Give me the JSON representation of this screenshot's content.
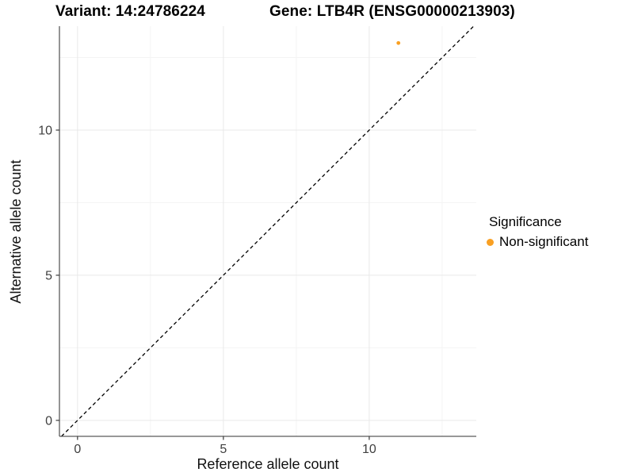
{
  "titles": {
    "variant": "Variant: 14:24786224",
    "gene": "Gene: LTB4R (ENSG00000213903)"
  },
  "axes": {
    "x_label": "Reference allele count",
    "y_label": "Alternative allele count"
  },
  "legend": {
    "title": "Significance",
    "items": [
      {
        "label": "Non-significant",
        "color": "#F9A023"
      }
    ]
  },
  "colors": {
    "background": "#ffffff",
    "point": "#F9A023",
    "axis_line": "#5a5a5a",
    "tick_text": "#404040",
    "major_grid": "#e9e9e9",
    "minor_grid": "#f4f4f4",
    "identity_line": "#000000"
  },
  "chart_data": {
    "type": "scatter",
    "title": "Variant: 14:24786224    Gene: LTB4R (ENSG00000213903)",
    "xlabel": "Reference allele count",
    "ylabel": "Alternative allele count",
    "xlim": [
      -0.62,
      13.67
    ],
    "ylim": [
      -0.55,
      13.58
    ],
    "x_ticks": [
      0,
      5,
      10
    ],
    "y_ticks": [
      0,
      5,
      10
    ],
    "x_minor_ticks": [
      2.5,
      7.5,
      12.5
    ],
    "y_minor_ticks": [
      2.5,
      7.5,
      12.5
    ],
    "grid": "on",
    "legend_position": "right",
    "series": [
      {
        "name": "Non-significant",
        "color": "#F9A023",
        "points": [
          {
            "x": 11,
            "y": 13
          }
        ]
      }
    ],
    "annotations": [
      {
        "type": "reference-line",
        "equation": "y = x",
        "style": "dashed",
        "color": "#000000"
      }
    ]
  }
}
